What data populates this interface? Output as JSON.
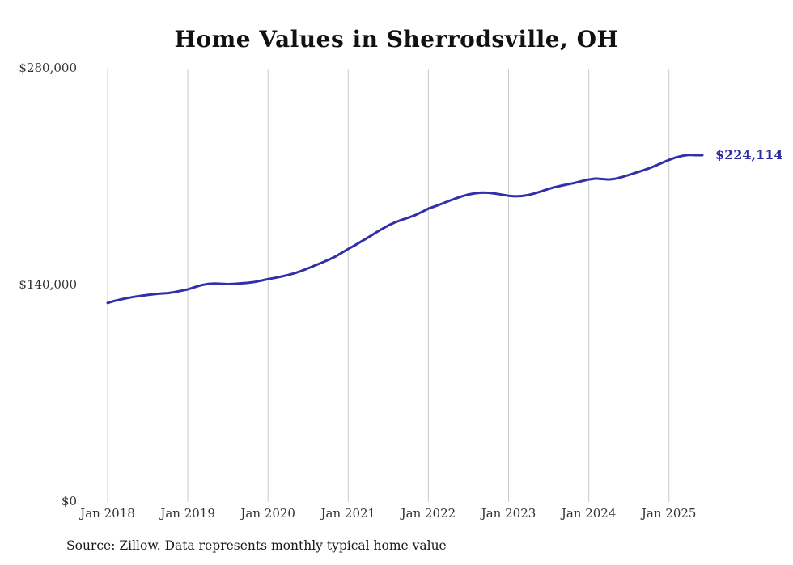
{
  "title": "Home Values in Sherrodsville, OH",
  "source_note": "Source: Zillow. Data represents monthly typical home value",
  "end_label": "$224,114",
  "colors": {
    "line": "#332fa8",
    "end_label": "#2b2aa5",
    "grid": "#cccccc",
    "axis_text": "#333333"
  },
  "chart_data": {
    "type": "line",
    "title": "Home Values in Sherrodsville, OH",
    "xlabel": "",
    "ylabel": "",
    "ylim": [
      0,
      280000
    ],
    "grid": "vertical-only",
    "legend": "none",
    "x_tick_labels": [
      "Jan 2018",
      "Jan 2019",
      "Jan 2020",
      "Jan 2021",
      "Jan 2022",
      "Jan 2023",
      "Jan 2024",
      "Jan 2025"
    ],
    "y_tick_labels": [
      "$0",
      "$140,000",
      "$280,000"
    ],
    "x_start": "2018-01",
    "x_end": "2025-06",
    "final_value": 224114,
    "series": [
      {
        "name": "Monthly typical home value",
        "values": [
          128600,
          129900,
          130900,
          131800,
          132600,
          133200,
          133800,
          134300,
          134700,
          135000,
          135600,
          136500,
          137400,
          138800,
          140100,
          140900,
          141200,
          141000,
          140800,
          141000,
          141300,
          141600,
          142200,
          143100,
          144000,
          144800,
          145700,
          146700,
          147900,
          149300,
          151000,
          152800,
          154600,
          156400,
          158400,
          160900,
          163500,
          165900,
          168400,
          171000,
          173700,
          176300,
          178700,
          180700,
          182300,
          183700,
          185300,
          187400,
          189600,
          191100,
          192700,
          194400,
          196000,
          197500,
          198700,
          199500,
          199900,
          199800,
          199300,
          198600,
          197900,
          197500,
          197700,
          198400,
          199500,
          200900,
          202300,
          203500,
          204500,
          205400,
          206300,
          207400,
          208400,
          209000,
          208700,
          208400,
          208900,
          210000,
          211300,
          212700,
          214100,
          215600,
          217300,
          219200,
          221000,
          222600,
          223700,
          224300,
          224100,
          224114
        ]
      }
    ]
  }
}
